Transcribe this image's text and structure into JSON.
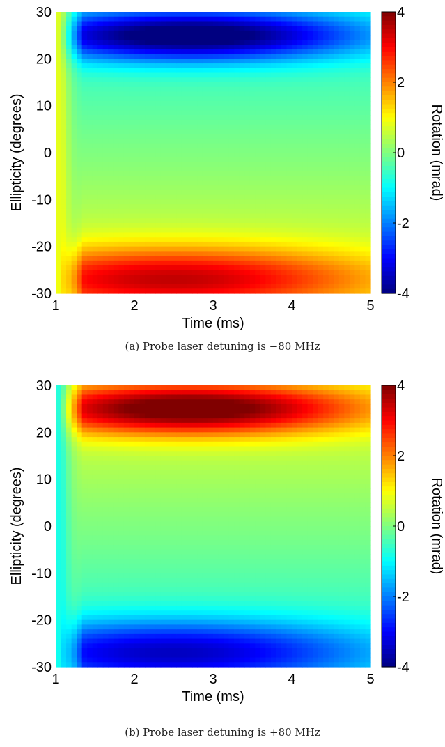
{
  "chart_data": [
    {
      "type": "heatmap",
      "id": "a",
      "caption": "(a) Probe laser detuning is −80 MHz",
      "xlabel": "Time (ms)",
      "ylabel": "Ellipticity (degrees)",
      "colorbar_label": "Rotation (mrad)",
      "xlim": [
        1,
        5
      ],
      "ylim": [
        -30,
        30
      ],
      "clim": [
        -4,
        4
      ],
      "x_ticks": [
        1,
        2,
        3,
        4,
        5
      ],
      "y_ticks": [
        -30,
        -20,
        -10,
        0,
        10,
        20,
        30
      ],
      "colorbar_ticks": [
        -4,
        -2,
        0,
        2,
        4
      ],
      "colormap": "jet",
      "sign": -1
    },
    {
      "type": "heatmap",
      "id": "b",
      "caption": "(b) Probe laser detuning is +80 MHz",
      "xlabel": "Time (ms)",
      "ylabel": "Ellipticity (degrees)",
      "colorbar_label": "Rotation (mrad)",
      "xlim": [
        1,
        5
      ],
      "ylim": [
        -30,
        30
      ],
      "clim": [
        -4,
        4
      ],
      "x_ticks": [
        1,
        2,
        3,
        4,
        5
      ],
      "y_ticks": [
        -30,
        -20,
        -10,
        0,
        10,
        20,
        30
      ],
      "colorbar_ticks": [
        -4,
        -2,
        0,
        2,
        4
      ],
      "colormap": "jet",
      "sign": 1
    }
  ]
}
